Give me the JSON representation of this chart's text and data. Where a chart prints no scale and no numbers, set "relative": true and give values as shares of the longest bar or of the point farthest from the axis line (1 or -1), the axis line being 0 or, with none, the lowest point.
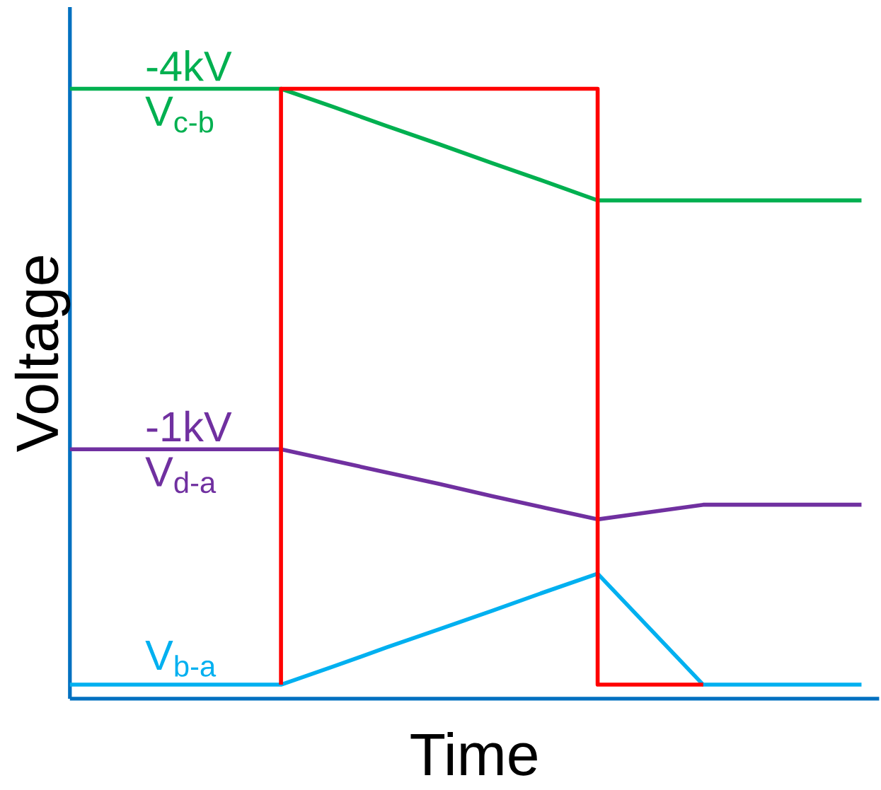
{
  "chart_data": {
    "type": "line",
    "relative": true,
    "xlabel": "Time",
    "ylabel": "Voltage",
    "categories": [
      null,
      null,
      null,
      null,
      null,
      null,
      null,
      null,
      null,
      null,
      null,
      null,
      null,
      null,
      null,
      null
    ],
    "series": [
      {
        "name": "V$_{c-b}$",
        "color": "#00b050",
        "values": [
          1,
          1,
          1,
          1,
          1,
          0.97,
          0.939,
          0.909,
          0.878,
          0.848,
          0.817,
          0.817,
          0.817,
          0.817,
          0.817,
          0.817
        ]
      },
      {
        "type": "step",
        "color": "#ff0000",
        "values": [
          null,
          null,
          null,
          null,
          0.023,
          1,
          1,
          1,
          1,
          1,
          1,
          0.023,
          0.023,
          null,
          null,
          null
        ]
      },
      {
        "name": "V$_{d-a}$",
        "color": "#7030a0",
        "values": [
          0.409,
          0.409,
          0.409,
          0.409,
          0.409,
          0.39,
          0.371,
          0.352,
          0.332,
          0.313,
          0.294,
          0.306,
          0.318,
          0.318,
          0.318,
          0.318
        ]
      },
      {
        "name": "V$_{b-a}$",
        "color": "#00b0f0",
        "values": [
          0.023,
          0.023,
          0.023,
          0.023,
          0.023,
          0.053,
          0.084,
          0.114,
          0.144,
          0.175,
          0.205,
          0.114,
          0.023,
          0.023,
          0.023,
          0.023
        ]
      }
    ],
    "annotations": [
      {
        "text": "-4kV",
        "y": 1
      },
      {
        "text": "-1kV",
        "y": 0.409
      }
    ]
  }
}
